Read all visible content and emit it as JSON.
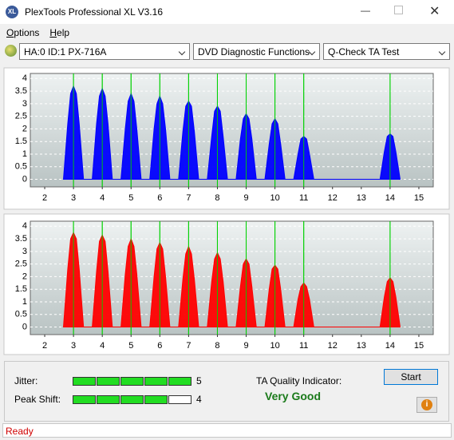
{
  "window": {
    "title": "PlexTools Professional XL V3.16"
  },
  "menu": [
    "Options",
    "Help"
  ],
  "toolbar": {
    "drive": "HA:0 ID:1  PX-716A",
    "function": "DVD Diagnostic Functions",
    "test": "Q-Check TA Test"
  },
  "charts": [
    {
      "type": "area",
      "color": "#0000ff",
      "marker_color": "#00d000",
      "xlim": [
        1.5,
        15.5
      ],
      "ylim": [
        -0.3,
        4.2
      ],
      "xticks": [
        2,
        3,
        4,
        5,
        6,
        7,
        8,
        9,
        10,
        11,
        12,
        13,
        14,
        15
      ],
      "yticks": [
        0,
        0.5,
        1,
        1.5,
        2,
        2.5,
        3,
        3.5,
        4
      ],
      "markers": [
        3,
        4,
        5,
        6,
        7,
        8,
        9,
        10,
        11,
        14
      ],
      "x": [
        2.65,
        2.8,
        2.9,
        3,
        3.1,
        3.2,
        3.35,
        3.65,
        3.8,
        3.9,
        4,
        4.1,
        4.2,
        4.35,
        4.65,
        4.8,
        4.9,
        5,
        5.1,
        5.2,
        5.35,
        5.65,
        5.8,
        5.9,
        6,
        6.1,
        6.2,
        6.35,
        6.65,
        6.8,
        6.9,
        7,
        7.1,
        7.2,
        7.35,
        7.65,
        7.8,
        7.9,
        8,
        8.1,
        8.2,
        8.35,
        8.65,
        8.8,
        8.9,
        9,
        9.1,
        9.2,
        9.35,
        9.65,
        9.8,
        9.9,
        10,
        10.1,
        10.2,
        10.35,
        10.65,
        10.8,
        10.9,
        11,
        11.1,
        11.2,
        11.35,
        13.65,
        13.8,
        13.9,
        14,
        14.1,
        14.2,
        14.35
      ],
      "values": [
        0,
        2.2,
        3.4,
        3.7,
        3.4,
        2.2,
        0,
        0,
        2.2,
        3.3,
        3.6,
        3.3,
        2.2,
        0,
        0,
        2,
        3.1,
        3.4,
        3.1,
        2,
        0,
        0,
        2,
        3,
        3.3,
        3,
        2,
        0,
        0,
        1.9,
        2.9,
        3.1,
        2.9,
        1.9,
        0,
        0,
        1.7,
        2.7,
        2.9,
        2.7,
        1.7,
        0,
        0,
        1.6,
        2.4,
        2.6,
        2.4,
        1.6,
        0,
        0,
        1.4,
        2.2,
        2.4,
        2.2,
        1.4,
        0,
        0,
        1,
        1.6,
        1.7,
        1.6,
        1,
        0,
        0,
        1.1,
        1.7,
        1.8,
        1.7,
        1.1,
        0
      ]
    },
    {
      "type": "area",
      "color": "#ff0000",
      "marker_color": "#00d000",
      "xlim": [
        1.5,
        15.5
      ],
      "ylim": [
        -0.3,
        4.2
      ],
      "xticks": [
        2,
        3,
        4,
        5,
        6,
        7,
        8,
        9,
        10,
        11,
        12,
        13,
        14,
        15
      ],
      "yticks": [
        0,
        0.5,
        1,
        1.5,
        2,
        2.5,
        3,
        3.5,
        4
      ],
      "markers": [
        3,
        4,
        5,
        6,
        7,
        8,
        9,
        10,
        11,
        14
      ],
      "x": [
        2.65,
        2.8,
        2.9,
        3,
        3.1,
        3.2,
        3.35,
        3.65,
        3.8,
        3.9,
        4,
        4.1,
        4.2,
        4.35,
        4.65,
        4.8,
        4.9,
        5,
        5.1,
        5.2,
        5.35,
        5.65,
        5.8,
        5.9,
        6,
        6.1,
        6.2,
        6.35,
        6.65,
        6.8,
        6.9,
        7,
        7.1,
        7.2,
        7.35,
        7.65,
        7.8,
        7.9,
        8,
        8.1,
        8.2,
        8.35,
        8.65,
        8.8,
        8.9,
        9,
        9.1,
        9.2,
        9.35,
        9.65,
        9.8,
        9.9,
        10,
        10.1,
        10.2,
        10.35,
        10.65,
        10.8,
        10.9,
        11,
        11.1,
        11.2,
        11.35,
        13.65,
        13.8,
        13.9,
        14,
        14.1,
        14.2,
        14.35
      ],
      "values": [
        0,
        2.3,
        3.5,
        3.75,
        3.5,
        2.3,
        0,
        0,
        2.2,
        3.4,
        3.65,
        3.4,
        2.2,
        0,
        0,
        2.1,
        3.2,
        3.5,
        3.2,
        2.1,
        0,
        0,
        2,
        3.1,
        3.35,
        3.1,
        2,
        0,
        0,
        1.9,
        2.9,
        3.2,
        2.9,
        1.9,
        0,
        0,
        1.8,
        2.7,
        2.95,
        2.7,
        1.8,
        0,
        0,
        1.6,
        2.5,
        2.7,
        2.5,
        1.6,
        0,
        0,
        1.5,
        2.3,
        2.45,
        2.3,
        1.5,
        0,
        0,
        1.1,
        1.6,
        1.75,
        1.6,
        1.1,
        0,
        0,
        1.2,
        1.8,
        1.95,
        1.8,
        1.2,
        0
      ]
    }
  ],
  "quality": {
    "jitter": {
      "label": "Jitter:",
      "value": 5
    },
    "peak_shift": {
      "label": "Peak Shift:",
      "value": 4
    },
    "indicator_label": "TA Quality Indicator:",
    "rating": "Very Good",
    "start": "Start"
  },
  "status": "Ready"
}
